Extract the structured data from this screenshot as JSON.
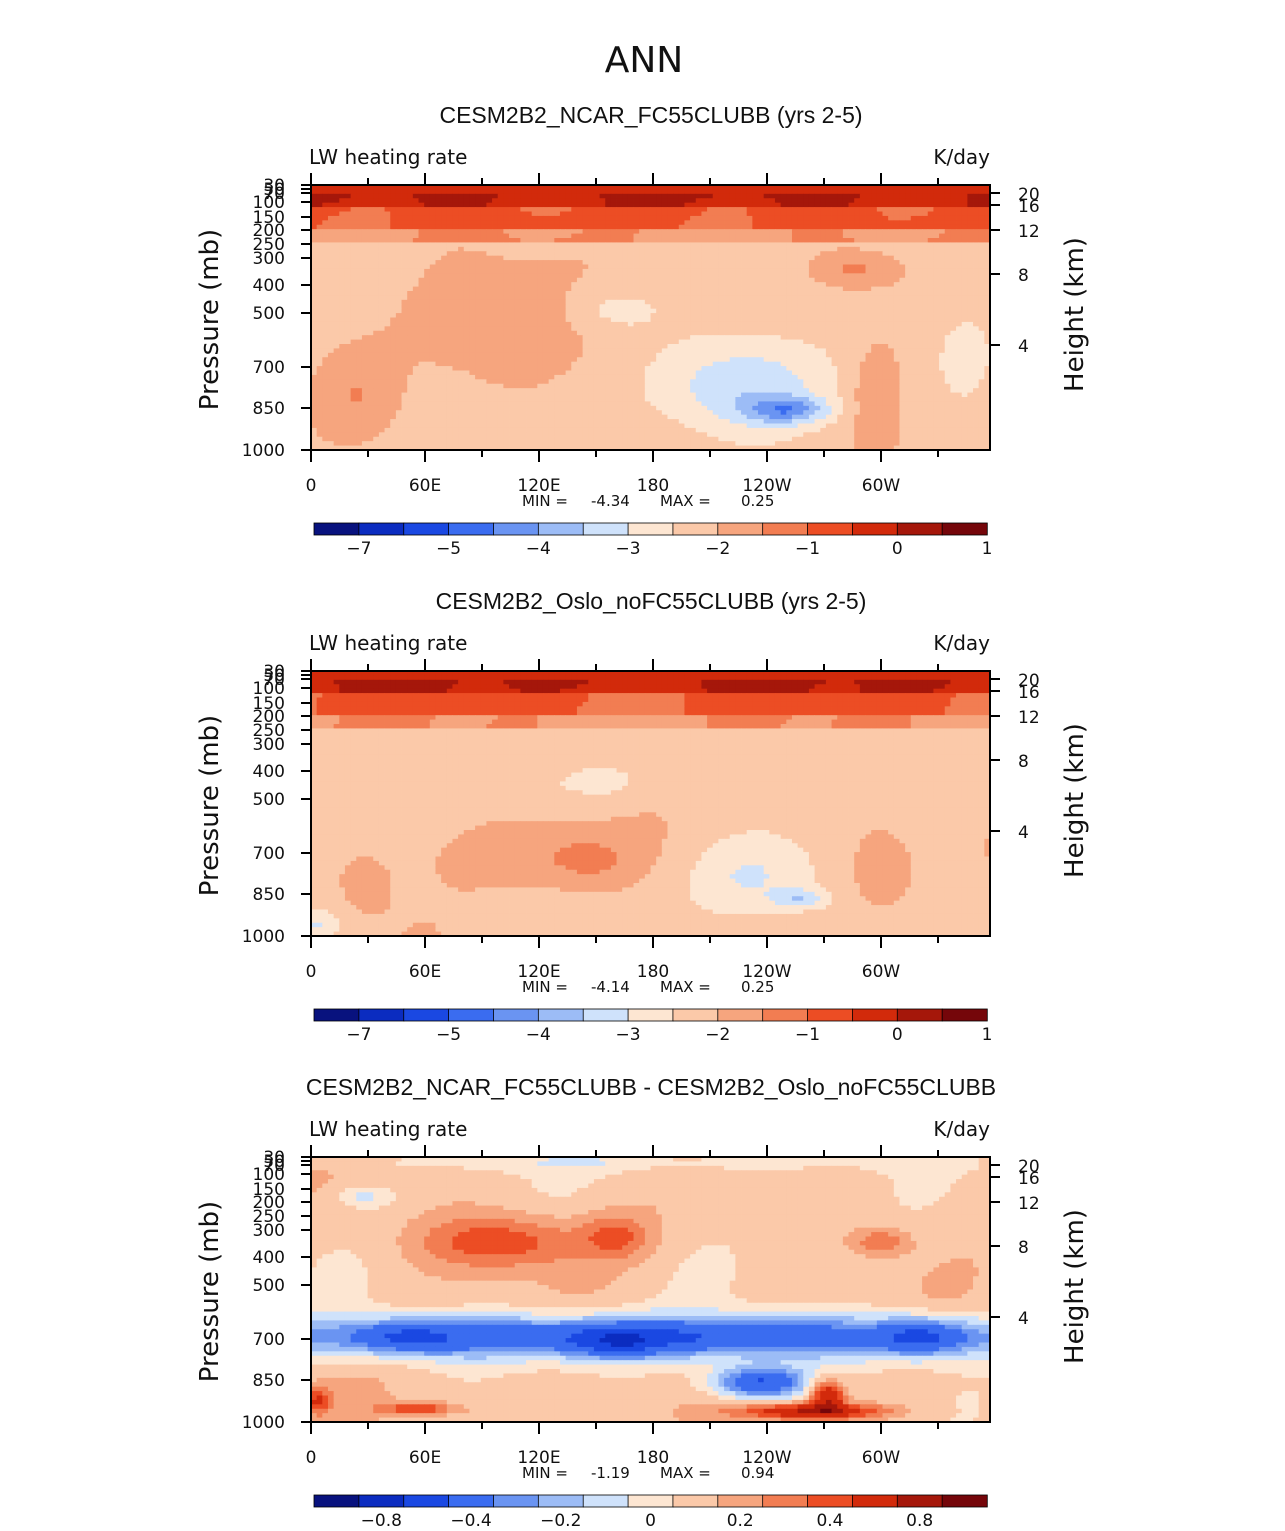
{
  "figure": {
    "title": "ANN"
  },
  "chart_data": [
    {
      "type": "heatmap",
      "title": "CESM2B2_NCAR_FC55CLUBB (yrs 2-5)",
      "variable": "LW heating rate",
      "units": "K/day",
      "xlabel": "",
      "ylabel": "Pressure (mb)",
      "ylabel_right": "Height (km)",
      "x_ticks": [
        "0",
        "60E",
        "120E",
        "180",
        "120W",
        "60W"
      ],
      "y_ticks": [
        "30",
        "50",
        "70",
        "100",
        "150",
        "200",
        "250",
        "300",
        "400",
        "500",
        "700",
        "850",
        "1000"
      ],
      "y_right_ticks": [
        "20",
        "16",
        "12",
        "8",
        "4"
      ],
      "min_label": "MIN =",
      "min": "-4.34",
      "max_label": "MAX =",
      "max": "0.25",
      "colorbar_ticks": [
        "-7",
        "-5",
        "-4",
        "-3",
        "-2",
        "-1",
        "0",
        "1"
      ],
      "colors": [
        "#08127e",
        "#0b2cc0",
        "#1a48e2",
        "#3a6cf0",
        "#6a94f2",
        "#9cbcf6",
        "#cfe2fb",
        "#fde6d2",
        "#fbc9a9",
        "#f6a57e",
        "#f27d52",
        "#ec4d24",
        "#d22a0b",
        "#a5170a",
        "#75060a"
      ]
    },
    {
      "type": "heatmap",
      "title": "CESM2B2_Oslo_noFC55CLUBB (yrs 2-5)",
      "variable": "LW heating rate",
      "units": "K/day",
      "xlabel": "",
      "ylabel": "Pressure (mb)",
      "ylabel_right": "Height (km)",
      "x_ticks": [
        "0",
        "60E",
        "120E",
        "180",
        "120W",
        "60W"
      ],
      "y_ticks": [
        "30",
        "50",
        "70",
        "100",
        "150",
        "200",
        "250",
        "300",
        "400",
        "500",
        "700",
        "850",
        "1000"
      ],
      "y_right_ticks": [
        "20",
        "16",
        "12",
        "8",
        "4"
      ],
      "min_label": "MIN =",
      "min": "-4.14",
      "max_label": "MAX =",
      "max": "0.25",
      "colorbar_ticks": [
        "-7",
        "-5",
        "-4",
        "-3",
        "-2",
        "-1",
        "0",
        "1"
      ],
      "colors": [
        "#08127e",
        "#0b2cc0",
        "#1a48e2",
        "#3a6cf0",
        "#6a94f2",
        "#9cbcf6",
        "#cfe2fb",
        "#fde6d2",
        "#fbc9a9",
        "#f6a57e",
        "#f27d52",
        "#ec4d24",
        "#d22a0b",
        "#a5170a",
        "#75060a"
      ]
    },
    {
      "type": "heatmap",
      "title": "CESM2B2_NCAR_FC55CLUBB - CESM2B2_Oslo_noFC55CLUBB",
      "variable": "LW heating rate",
      "units": "K/day",
      "xlabel": "",
      "ylabel": "Pressure (mb)",
      "ylabel_right": "Height (km)",
      "x_ticks": [
        "0",
        "60E",
        "120E",
        "180",
        "120W",
        "60W"
      ],
      "y_ticks": [
        "30",
        "50",
        "70",
        "100",
        "150",
        "200",
        "250",
        "300",
        "400",
        "500",
        "700",
        "850",
        "1000"
      ],
      "y_right_ticks": [
        "20",
        "16",
        "12",
        "8",
        "4"
      ],
      "min_label": "MIN =",
      "min": "-1.19",
      "max_label": "MAX =",
      "max": "0.94",
      "colorbar_ticks": [
        "-0.8",
        "-0.4",
        "-0.2",
        "0",
        "0.2",
        "0.4",
        "0.8"
      ],
      "colors": [
        "#08127e",
        "#0b2cc0",
        "#1a48e2",
        "#3a6cf0",
        "#6a94f2",
        "#9cbcf6",
        "#cfe2fb",
        "#fde6d2",
        "#fbc9a9",
        "#f6a57e",
        "#f27d52",
        "#ec4d24",
        "#d22a0b",
        "#a5170a",
        "#75060a"
      ]
    }
  ]
}
